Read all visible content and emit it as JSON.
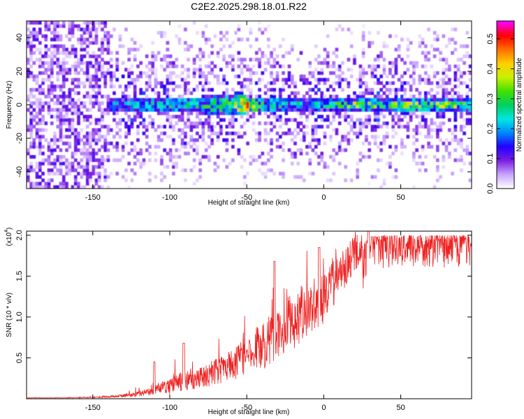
{
  "title": "C2E2.2025.298.18.01.R22",
  "chart_data": [
    {
      "type": "heatmap",
      "title": "C2E2.2025.298.18.01.R22",
      "xlabel": "Height of straight line (km)",
      "ylabel": "Frequency (Hz)",
      "xlim": [
        -193,
        96
      ],
      "ylim": [
        -50,
        50
      ],
      "x_ticks": [
        -150,
        -100,
        -50,
        0,
        50
      ],
      "y_ticks": [
        -40,
        -20,
        0,
        20,
        40
      ],
      "grid": false,
      "colorbar": {
        "label": "Normalized spectral amplitude",
        "range": [
          0,
          0.56
        ],
        "ticks": [
          0.0,
          0.1,
          0.2,
          0.3,
          0.4,
          0.5
        ],
        "colormap": [
          "#ffffff",
          "#c9a3ff",
          "#7a1fe0",
          "#2200ff",
          "#0088ff",
          "#00e8e0",
          "#00d060",
          "#40e000",
          "#c8f000",
          "#ffd000",
          "#ff7000",
          "#ff0000",
          "#ff00ff"
        ]
      },
      "noise_region": {
        "x": [
          -193,
          -140
        ],
        "level": 0.06
      },
      "band_profile": {
        "x": [
          -140,
          -120,
          -100,
          -80,
          -60,
          -50,
          -40,
          -20,
          0,
          20,
          40,
          60,
          80,
          96
        ],
        "peak_amplitude": [
          0.22,
          0.28,
          0.3,
          0.32,
          0.42,
          0.56,
          0.34,
          0.3,
          0.3,
          0.46,
          0.38,
          0.44,
          0.42,
          0.4
        ],
        "half_width_hz": [
          4,
          4,
          4,
          5,
          5,
          5,
          4,
          3,
          3,
          3,
          3,
          3,
          3,
          3
        ]
      },
      "scatter_band_hz": 35
    },
    {
      "type": "line",
      "xlabel": "Height of straight line (km)",
      "ylabel": "SNR (10 * v/v)",
      "y_scale_label": "(x10",
      "y_scale_exponent": "4",
      "xlim": [
        -193,
        96
      ],
      "ylim": [
        0,
        2.05
      ],
      "x_ticks": [
        -150,
        -100,
        -50,
        0,
        50
      ],
      "y_ticks": [
        0.5,
        1.0,
        1.5,
        2.0
      ],
      "y_tick_labels": [
        "0.5",
        "1.0",
        "1.5",
        "2.0"
      ],
      "line_color": "#ee2222",
      "grid": false,
      "series": [
        {
          "x": [
            -193,
            -170,
            -150,
            -140,
            -130,
            -120,
            -115,
            -110,
            -105,
            -100,
            -95,
            -90,
            -85,
            -80,
            -70,
            -60,
            -50,
            -40,
            -30,
            -20,
            -10,
            0,
            10,
            20,
            30,
            40,
            50,
            60,
            70,
            80,
            90,
            96
          ],
          "y": [
            0.01,
            0.01,
            0.015,
            0.02,
            0.03,
            0.05,
            0.06,
            0.1,
            0.12,
            0.12,
            0.15,
            0.18,
            0.2,
            0.22,
            0.28,
            0.35,
            0.45,
            0.55,
            0.7,
            0.85,
            1.0,
            1.15,
            1.4,
            1.7,
            1.88,
            1.9,
            1.92,
            1.9,
            1.92,
            1.9,
            1.9,
            1.9
          ],
          "spread": [
            0.005,
            0.005,
            0.01,
            0.02,
            0.03,
            0.05,
            0.06,
            0.1,
            0.12,
            0.15,
            0.18,
            0.25,
            0.2,
            0.2,
            0.25,
            0.3,
            0.4,
            0.45,
            0.5,
            0.55,
            0.55,
            0.5,
            0.45,
            0.35,
            0.2,
            0.18,
            0.18,
            0.18,
            0.18,
            0.18,
            0.18,
            0.18
          ]
        }
      ],
      "annotations": [
        {
          "x": -110,
          "y": 0.45
        },
        {
          "x": -91,
          "y": 0.68
        },
        {
          "x": -32,
          "y": 1.68
        },
        {
          "x": -3,
          "y": 1.85
        },
        {
          "x": 29,
          "y": 2.05
        }
      ]
    }
  ]
}
